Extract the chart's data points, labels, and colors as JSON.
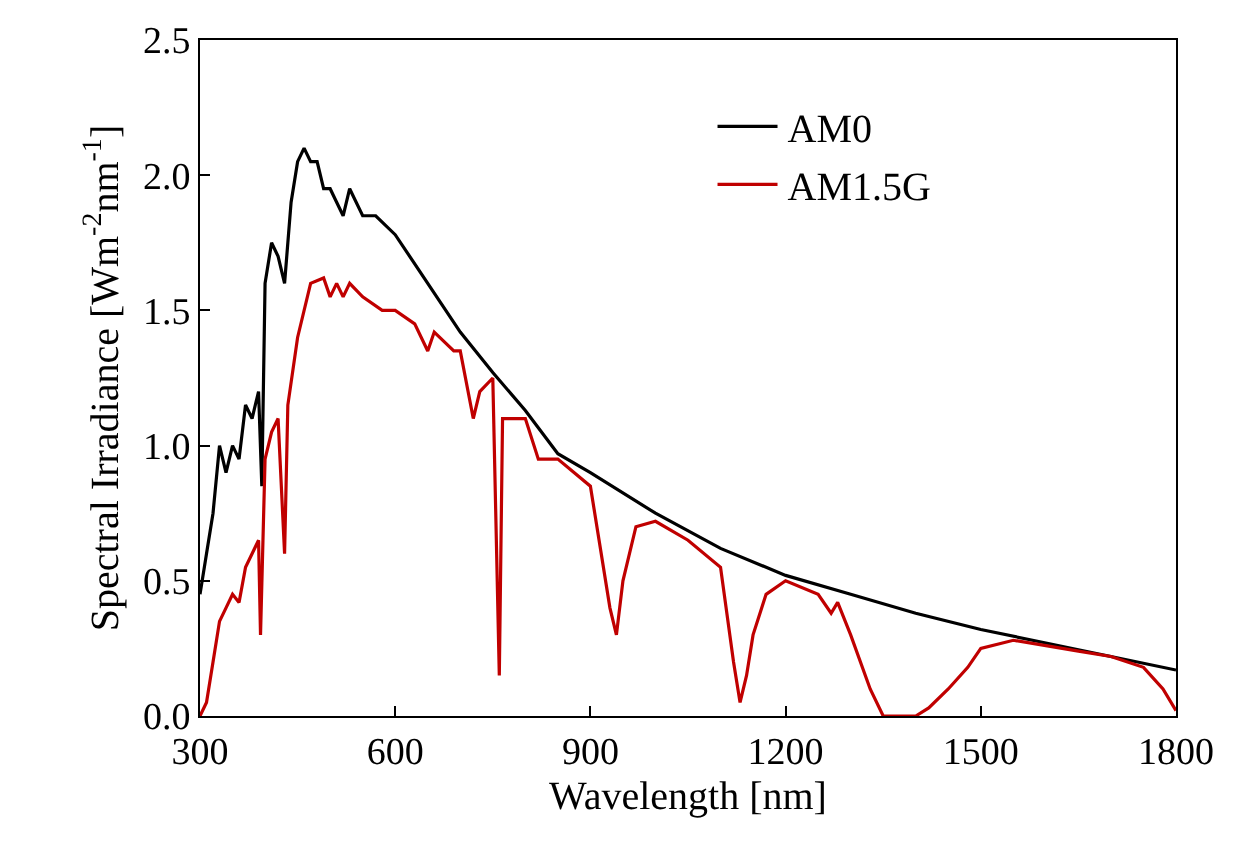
{
  "chart_data": {
    "type": "line",
    "xlabel": "Wavelength [nm]",
    "ylabel": "Spectral Irradiance [Wm$^{-2}$nm$^{-1}$]",
    "xlim": [
      300,
      1800
    ],
    "xticks": [
      300,
      600,
      900,
      1200,
      1500,
      1800
    ],
    "ylim": [
      0,
      2.5
    ],
    "yticks": [
      {
        "value": 0,
        "label": "0.0"
      },
      0.5,
      {
        "value": 1,
        "label": "1.0"
      },
      1.5,
      {
        "value": 2,
        "label": "2.0"
      },
      2.5
    ],
    "legend": "top right",
    "marker": "none",
    "line_style": "solid",
    "series": [
      {
        "name": "AM0",
        "color": "#000000",
        "x": [
          300,
          310,
          320,
          330,
          340,
          350,
          360,
          370,
          380,
          390,
          395,
          400,
          410,
          420,
          430,
          440,
          450,
          460,
          470,
          480,
          490,
          500,
          510,
          520,
          530,
          550,
          570,
          600,
          650,
          700,
          750,
          800,
          850,
          900,
          1000,
          1100,
          1200,
          1300,
          1400,
          1500,
          1600,
          1700,
          1800
        ],
        "values": [
          0.45,
          0.6,
          0.75,
          1.0,
          0.9,
          1.0,
          0.95,
          1.15,
          1.1,
          1.2,
          0.85,
          1.6,
          1.75,
          1.7,
          1.6,
          1.9,
          2.05,
          2.1,
          2.05,
          2.05,
          1.95,
          1.95,
          1.9,
          1.85,
          1.95,
          1.85,
          1.85,
          1.78,
          1.6,
          1.42,
          1.27,
          1.13,
          0.97,
          0.9,
          0.75,
          0.62,
          0.52,
          0.45,
          0.38,
          0.32,
          0.27,
          0.22,
          0.17
        ]
      },
      {
        "name": "AM1.5G",
        "color": "#c00000",
        "x": [
          300,
          310,
          320,
          330,
          340,
          350,
          360,
          370,
          380,
          390,
          393,
          400,
          410,
          420,
          430,
          435,
          450,
          470,
          490,
          500,
          510,
          520,
          530,
          550,
          580,
          600,
          630,
          650,
          660,
          690,
          700,
          720,
          730,
          750,
          760,
          765,
          800,
          820,
          850,
          900,
          930,
          940,
          950,
          970,
          1000,
          1050,
          1100,
          1120,
          1130,
          1140,
          1150,
          1170,
          1200,
          1250,
          1270,
          1280,
          1300,
          1330,
          1350,
          1400,
          1420,
          1450,
          1480,
          1500,
          1550,
          1600,
          1650,
          1700,
          1750,
          1780,
          1800
        ],
        "values": [
          0,
          0.05,
          0.2,
          0.35,
          0.4,
          0.45,
          0.42,
          0.55,
          0.6,
          0.65,
          0.3,
          0.95,
          1.05,
          1.1,
          0.6,
          1.15,
          1.4,
          1.6,
          1.62,
          1.55,
          1.6,
          1.55,
          1.6,
          1.55,
          1.5,
          1.5,
          1.45,
          1.35,
          1.42,
          1.35,
          1.35,
          1.1,
          1.2,
          1.25,
          0.15,
          1.1,
          1.1,
          0.95,
          0.95,
          0.85,
          0.4,
          0.3,
          0.5,
          0.7,
          0.72,
          0.65,
          0.55,
          0.2,
          0.05,
          0.15,
          0.3,
          0.45,
          0.5,
          0.45,
          0.38,
          0.42,
          0.3,
          0.1,
          0,
          0,
          0.03,
          0.1,
          0.18,
          0.25,
          0.28,
          0.26,
          0.24,
          0.22,
          0.18,
          0.1,
          0.02
        ]
      }
    ]
  }
}
